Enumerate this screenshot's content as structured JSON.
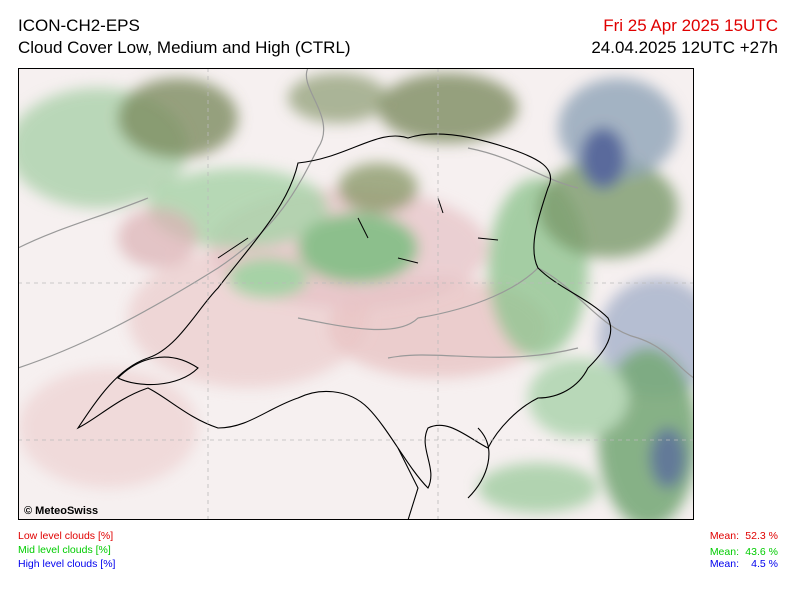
{
  "header": {
    "model": "ICON-CH2-EPS",
    "product": "Cloud Cover Low, Medium and High (CTRL)",
    "valid_time": "Fri 25 Apr 2025 15UTC",
    "run_time": "24.04.2025 12UTC +27h"
  },
  "map": {
    "copyright": "© MeteoSwiss"
  },
  "legend": [
    {
      "label": "Low level clouds [%]",
      "mean_label": "Mean:",
      "mean": "52.3 %"
    },
    {
      "label": "Mid level clouds [%]",
      "mean_label": "Mean:",
      "mean": "43.6 %"
    },
    {
      "label": "High level clouds [%]",
      "mean_label": "Mean:",
      "mean": "4.5 %"
    }
  ]
}
